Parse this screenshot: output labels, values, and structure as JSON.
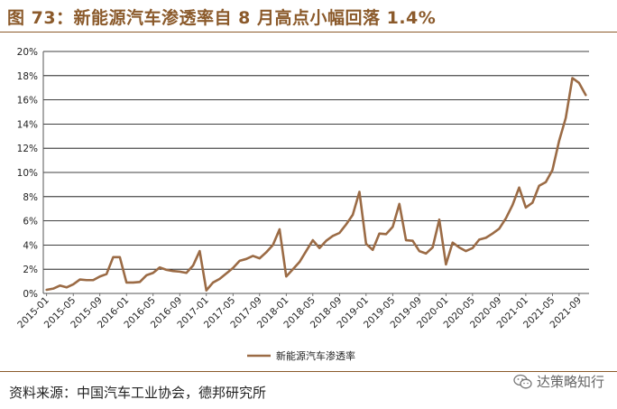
{
  "title": "图 73：新能源汽车渗透率自 8 月高点小幅回落 1.4%",
  "source": "资料来源：中国汽车工业协会，德邦研究所",
  "watermark": "达策略知行",
  "colors": {
    "line": "#9b6b45",
    "title": "#8b5a2b",
    "grid": "#000000"
  },
  "chart_data": {
    "type": "line",
    "title": "",
    "xlabel": "",
    "ylabel": "",
    "ylim": [
      0,
      20
    ],
    "yticks": [
      "0%",
      "2%",
      "4%",
      "6%",
      "8%",
      "10%",
      "12%",
      "14%",
      "16%",
      "18%",
      "20%"
    ],
    "xticks": [
      "2015-01",
      "2015-05",
      "2015-09",
      "2016-01",
      "2016-05",
      "2016-09",
      "2017-01",
      "2017-05",
      "2017-09",
      "2018-01",
      "2018-05",
      "2018-09",
      "2019-01",
      "2019-05",
      "2019-09",
      "2020-01",
      "2020-05",
      "2020-09",
      "2021-01",
      "2021-05",
      "2021-09"
    ],
    "grid": "horizontal",
    "legend_position": "bottom-center",
    "series": [
      {
        "name": "新能源汽车渗透率",
        "x": [
          "2015-01",
          "2015-02",
          "2015-03",
          "2015-04",
          "2015-05",
          "2015-06",
          "2015-07",
          "2015-08",
          "2015-09",
          "2015-10",
          "2015-11",
          "2015-12",
          "2016-01",
          "2016-02",
          "2016-03",
          "2016-04",
          "2016-05",
          "2016-06",
          "2016-07",
          "2016-08",
          "2016-09",
          "2016-10",
          "2016-11",
          "2016-12",
          "2017-01",
          "2017-02",
          "2017-03",
          "2017-04",
          "2017-05",
          "2017-06",
          "2017-07",
          "2017-08",
          "2017-09",
          "2017-10",
          "2017-11",
          "2017-12",
          "2018-01",
          "2018-02",
          "2018-03",
          "2018-04",
          "2018-05",
          "2018-06",
          "2018-07",
          "2018-08",
          "2018-09",
          "2018-10",
          "2018-11",
          "2018-12",
          "2019-01",
          "2019-02",
          "2019-03",
          "2019-04",
          "2019-05",
          "2019-06",
          "2019-07",
          "2019-08",
          "2019-09",
          "2019-10",
          "2019-11",
          "2019-12",
          "2020-01",
          "2020-02",
          "2020-03",
          "2020-04",
          "2020-05",
          "2020-06",
          "2020-07",
          "2020-08",
          "2020-09",
          "2020-10",
          "2020-11",
          "2020-12",
          "2021-01",
          "2021-02",
          "2021-03",
          "2021-04",
          "2021-05",
          "2021-06",
          "2021-07",
          "2021-08",
          "2021-09",
          "2021-10"
        ],
        "values": [
          0.3,
          0.4,
          0.65,
          0.5,
          0.75,
          1.15,
          1.1,
          1.1,
          1.4,
          1.6,
          3.0,
          3.0,
          0.9,
          0.9,
          0.95,
          1.5,
          1.7,
          2.15,
          1.95,
          1.85,
          1.8,
          1.7,
          2.3,
          3.5,
          0.25,
          0.9,
          1.2,
          1.65,
          2.1,
          2.7,
          2.85,
          3.1,
          2.9,
          3.4,
          4.0,
          5.3,
          1.4,
          2.0,
          2.6,
          3.5,
          4.4,
          3.75,
          4.35,
          4.75,
          5.0,
          5.7,
          6.5,
          8.4,
          4.1,
          3.6,
          4.95,
          4.9,
          5.5,
          7.4,
          4.4,
          4.35,
          3.5,
          3.3,
          3.8,
          6.1,
          2.4,
          4.2,
          3.8,
          3.5,
          3.75,
          4.45,
          4.6,
          4.95,
          5.35,
          6.2,
          7.3,
          8.75,
          7.1,
          7.5,
          8.9,
          9.2,
          10.2,
          12.6,
          14.5,
          17.8,
          17.4,
          16.4
        ]
      }
    ]
  }
}
